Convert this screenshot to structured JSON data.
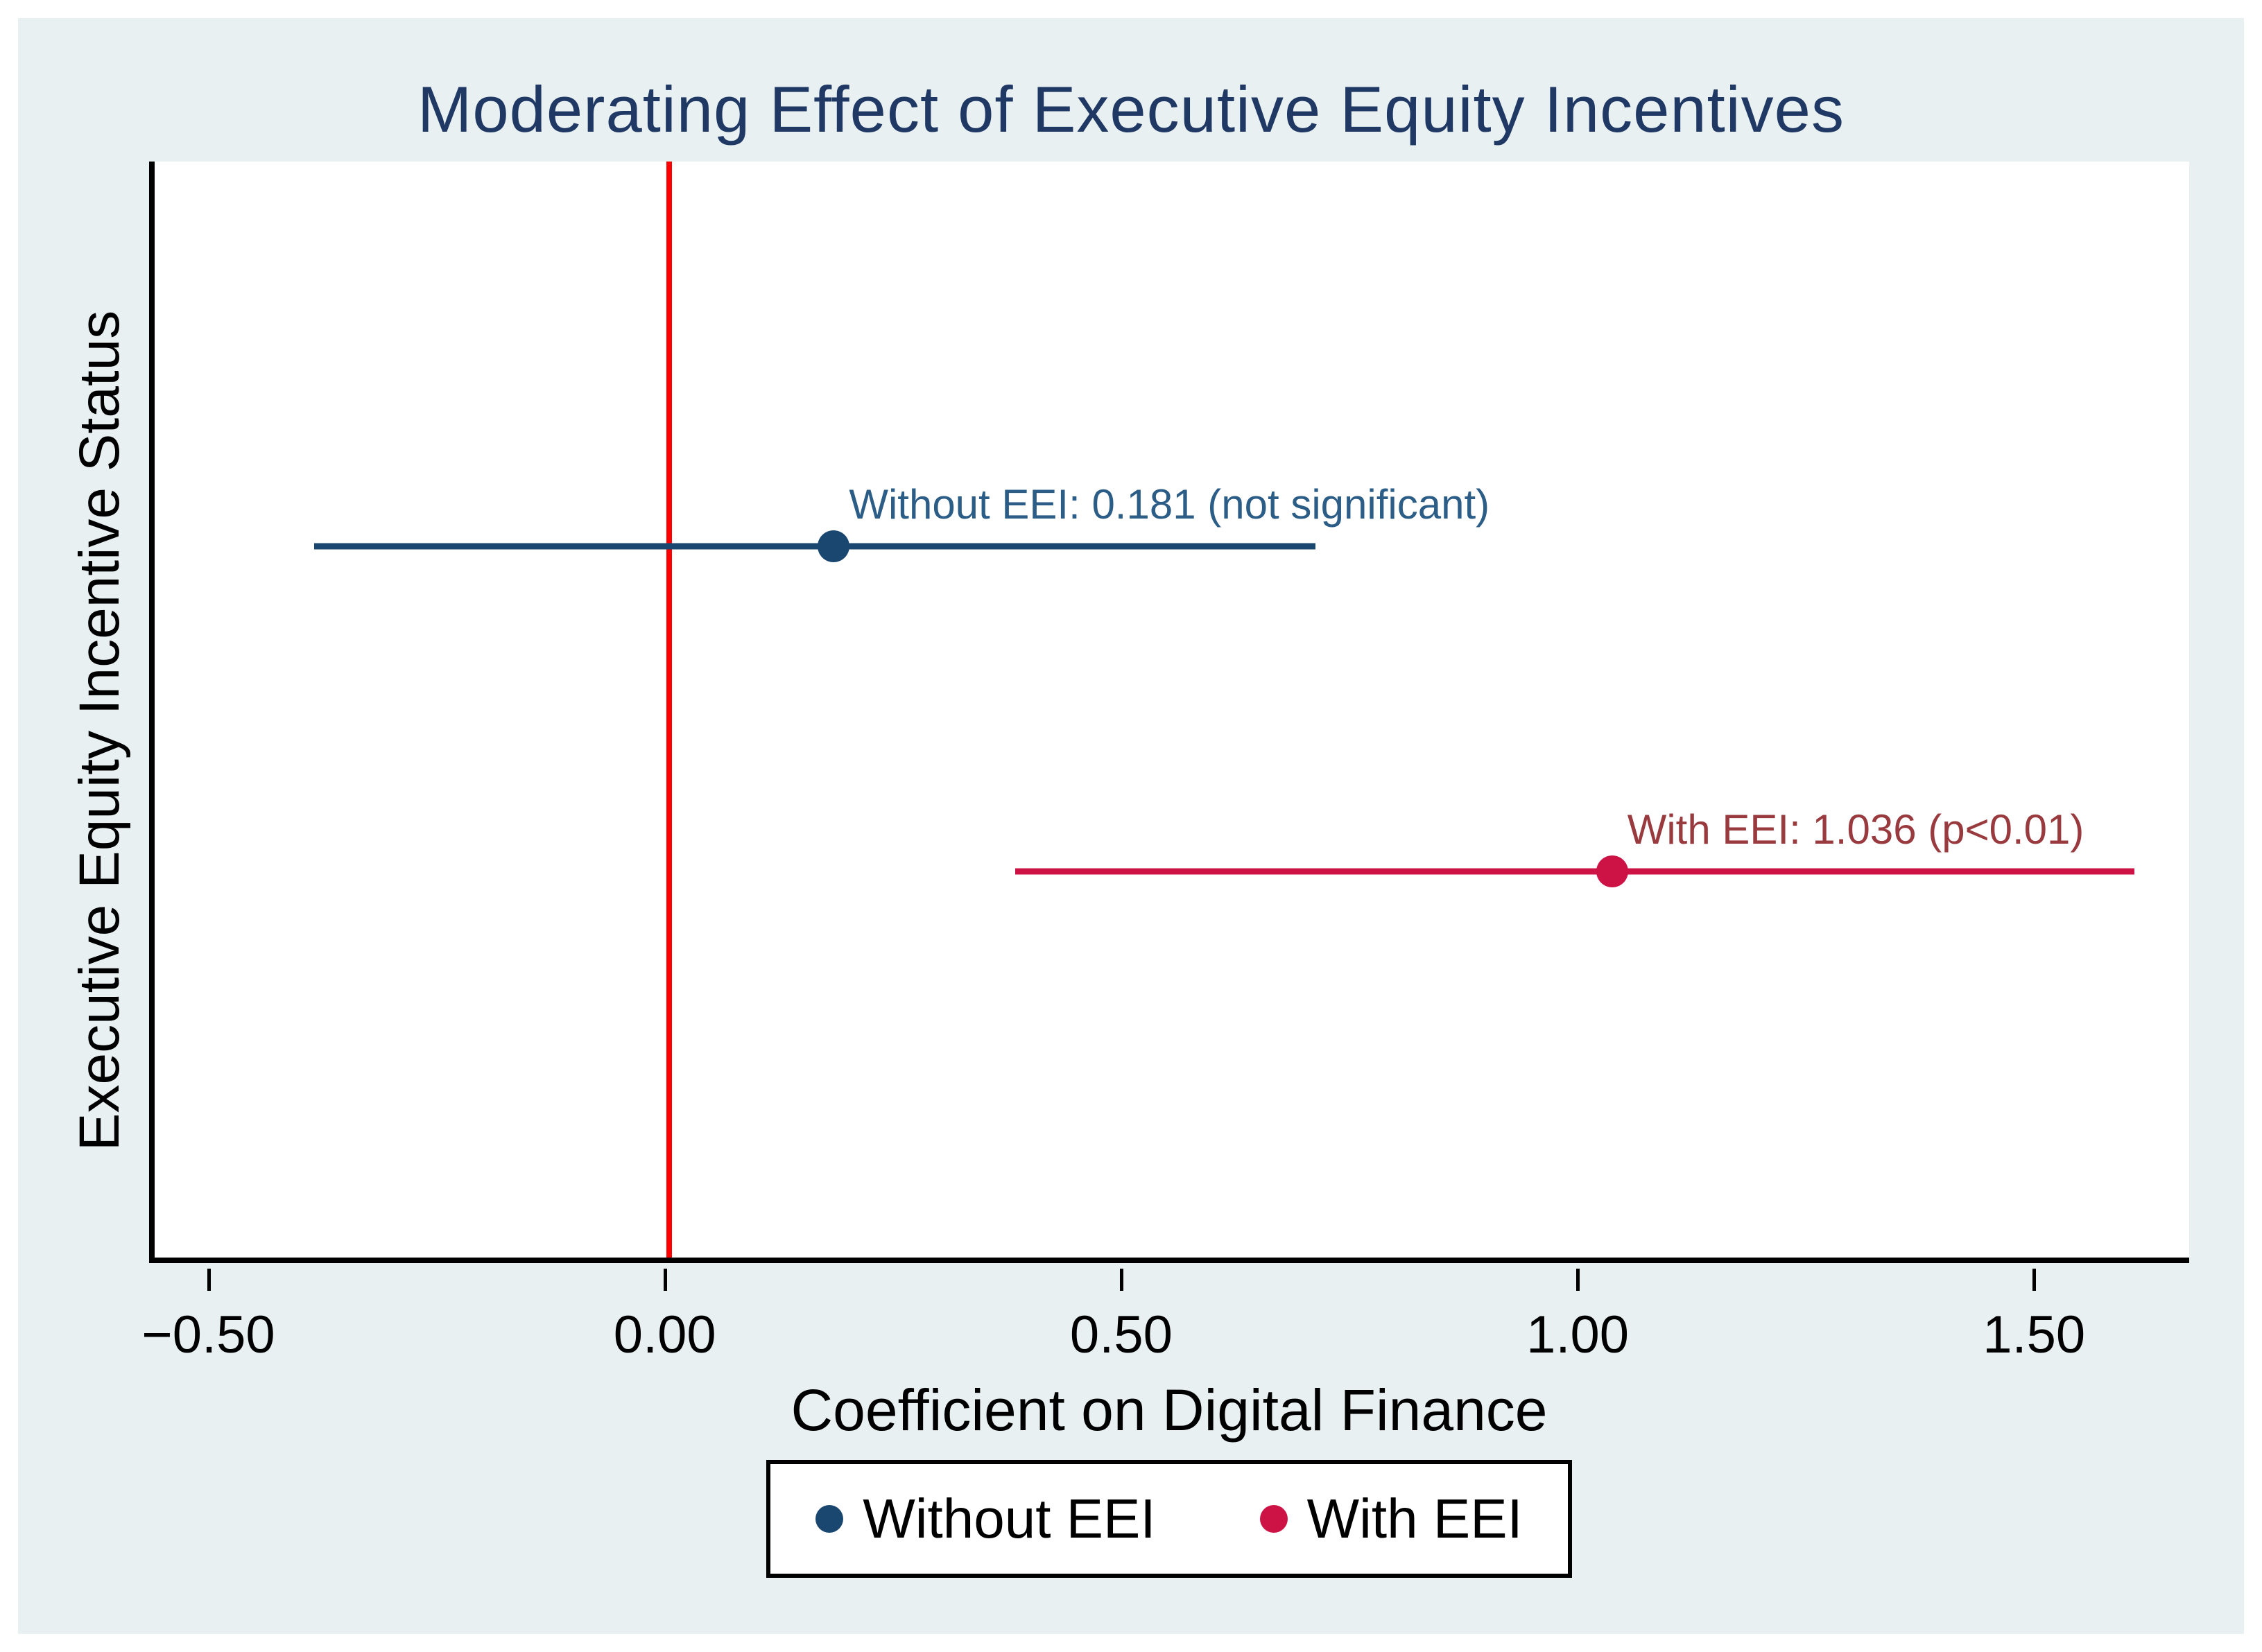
{
  "figure": {
    "background": "#ffffff",
    "canvas_background": "#e8f0f2"
  },
  "chart_data": {
    "type": "scatter",
    "subtype": "coefficient-plot-with-confidence-intervals",
    "title": "Moderating Effect of Executive Equity Incentives",
    "title_color": "#1f3864",
    "xlabel": "Coefficient on Digital Finance",
    "ylabel": "Executive Equity Incentive Status",
    "xlim": [
      -0.565,
      1.67
    ],
    "x_ticks": {
      "values": [
        -0.5,
        0,
        0.5,
        1,
        1.5
      ],
      "labels": [
        "−0.50",
        "0.00",
        "0.50",
        "1.00",
        "1.50"
      ]
    },
    "grid": false,
    "zero_line": {
      "x": 0,
      "color": "#ff0000"
    },
    "series": [
      {
        "name": "Without EEI",
        "estimate": 0.181,
        "ci_low": -0.39,
        "ci_high": 0.71,
        "significance": "not significant",
        "label": "Without EEI: 0.181 (not significant)",
        "color": "#1a476f",
        "label_color": "#2b5d87",
        "row": 0.351
      },
      {
        "name": "With EEI",
        "estimate": 1.036,
        "ci_low": 0.38,
        "ci_high": 1.61,
        "significance": "p<0.01",
        "label": "With EEI: 1.036 (p<0.01)",
        "color": "#cd1346",
        "label_color": "#993a3f",
        "row": 0.648
      }
    ],
    "legend": {
      "position": "bottom",
      "items": [
        {
          "label": "Without EEI",
          "color": "#1a476f"
        },
        {
          "label": "With EEI",
          "color": "#cd1346"
        }
      ]
    }
  }
}
